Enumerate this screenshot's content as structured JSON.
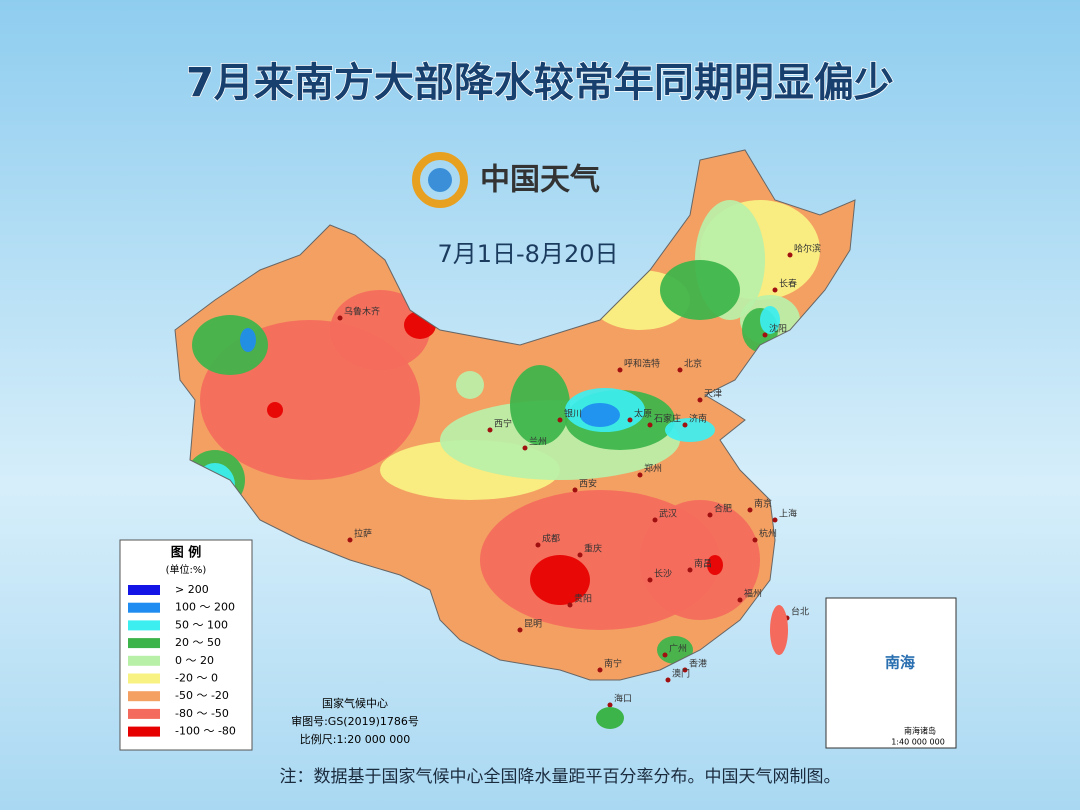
{
  "header": {
    "title": "7月来南方大部降水较常年同期明显偏少",
    "logo": "中国天气",
    "period": "7月1日-8月20日"
  },
  "legend": {
    "title": "图 例",
    "unit": "(单位:%)",
    "items": [
      {
        "label": "> 200",
        "color": "#1414e6"
      },
      {
        "label": "100 ～ 200",
        "color": "#1e8cf0"
      },
      {
        "label": "50 ～ 100",
        "color": "#3ceef0"
      },
      {
        "label": "20 ～ 50",
        "color": "#3cb44a"
      },
      {
        "label": "0 ～ 20",
        "color": "#b9f0a8"
      },
      {
        "label": "-20 ～ 0",
        "color": "#f8f282"
      },
      {
        "label": "-50 ～ -20",
        "color": "#f4a062"
      },
      {
        "label": "-80 ～ -50",
        "color": "#f46a5c"
      },
      {
        "label": "-100 ～ -80",
        "color": "#e60000"
      }
    ]
  },
  "credits": {
    "agency": "国家气候中心",
    "approval": "审图号:GS(2019)1786号",
    "scale": "比例尺:1:20 000 000"
  },
  "cities": [
    "乌鲁木齐",
    "拉萨",
    "西宁",
    "兰州",
    "银川",
    "呼和浩特",
    "北京",
    "天津",
    "石家庄",
    "太原",
    "济南",
    "郑州",
    "西安",
    "成都",
    "重庆",
    "武汉",
    "合肥",
    "南京",
    "上海",
    "杭州",
    "长沙",
    "南昌",
    "贵阳",
    "昆明",
    "南宁",
    "广州",
    "福州",
    "台北",
    "香港",
    "澳门",
    "海口",
    "哈尔滨",
    "长春",
    "沈阳"
  ],
  "inset": {
    "sea": "南海",
    "islands": "南海诸岛",
    "scale": "1:40 000 000"
  },
  "note": "注：数据基于国家气候中心全国降水量距平百分率分布。中国天气网制图。"
}
